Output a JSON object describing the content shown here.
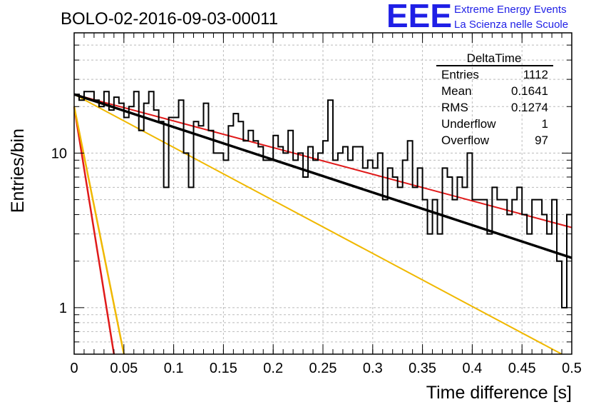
{
  "header": {
    "run_title": "BOLO-02-2016-09-03-00011",
    "logo_text": "EEE",
    "logo_line1": "Extreme Energy Events",
    "logo_line2": "La Scienza nelle Scuole",
    "logo_color": "#1f1fe6"
  },
  "stats": {
    "title": "DeltaTime",
    "rows": [
      {
        "label": "Entries",
        "value": "1112"
      },
      {
        "label": "Mean",
        "value": "0.1641"
      },
      {
        "label": "RMS",
        "value": "0.1274"
      },
      {
        "label": "Underflow",
        "value": "1"
      },
      {
        "label": "Overflow",
        "value": "97"
      }
    ]
  },
  "chart_data": {
    "type": "histogram",
    "title": "BOLO-02-2016-09-03-00011",
    "xlabel": "Time difference [s]",
    "ylabel": "Entries/bin",
    "xlim": [
      0,
      0.5
    ],
    "ylim": [
      0.5,
      60
    ],
    "y_scale": "log",
    "grid": true,
    "x_ticks": [
      {
        "v": 0,
        "label": "0"
      },
      {
        "v": 0.05,
        "label": "0.05"
      },
      {
        "v": 0.1,
        "label": "0.1"
      },
      {
        "v": 0.15,
        "label": "0.15"
      },
      {
        "v": 0.2,
        "label": "0.2"
      },
      {
        "v": 0.25,
        "label": "0.25"
      },
      {
        "v": 0.3,
        "label": "0.3"
      },
      {
        "v": 0.35,
        "label": "0.35"
      },
      {
        "v": 0.4,
        "label": "0.4"
      },
      {
        "v": 0.45,
        "label": "0.45"
      },
      {
        "v": 0.5,
        "label": "0.5"
      }
    ],
    "y_ticks": [
      {
        "v": 1,
        "label": "1"
      },
      {
        "v": 10,
        "label": "10"
      }
    ],
    "bin_width": 0.005,
    "counts": [
      24,
      22,
      25,
      25,
      22,
      20,
      25,
      19,
      23,
      21,
      17,
      20,
      25,
      14,
      21,
      25,
      19,
      16,
      6,
      17,
      17,
      22,
      10,
      6,
      16,
      15,
      21,
      14,
      10,
      10,
      9,
      15,
      18,
      16,
      12,
      14,
      12,
      11,
      9,
      9,
      13,
      11,
      10,
      14,
      9,
      10,
      7,
      11,
      9,
      10,
      12,
      22,
      9,
      10,
      11,
      9,
      11,
      11,
      8,
      9,
      8,
      10,
      5,
      8,
      7,
      6,
      9,
      12,
      6,
      8,
      5,
      3,
      5,
      3,
      8,
      7,
      5,
      7,
      6,
      10,
      5,
      5,
      5,
      3,
      6,
      5,
      5,
      4,
      5,
      6,
      4,
      3,
      5,
      5,
      4,
      3,
      5,
      2,
      1,
      4
    ],
    "fits": [
      {
        "color": "#e01a1a",
        "kind": "exponential",
        "x": [
          0,
          0.5
        ],
        "y": [
          24,
          3.3
        ],
        "stroke_w": 2
      },
      {
        "color": "#f0b800",
        "kind": "exponential",
        "x": [
          0,
          0.49
        ],
        "y": [
          24,
          0.5
        ],
        "stroke_w": 2
      },
      {
        "color": "#e01a1a",
        "kind": "exponential",
        "x": [
          0,
          0.04
        ],
        "y": [
          20,
          0.5
        ],
        "stroke_w": 2.5
      },
      {
        "color": "#f0b800",
        "kind": "exponential",
        "x": [
          0,
          0.05
        ],
        "y": [
          20,
          0.5
        ],
        "stroke_w": 2.5
      },
      {
        "color": "#000000",
        "kind": "exponential",
        "x": [
          0,
          0.5
        ],
        "y": [
          24,
          2.1
        ],
        "stroke_w": 3.5
      }
    ]
  }
}
